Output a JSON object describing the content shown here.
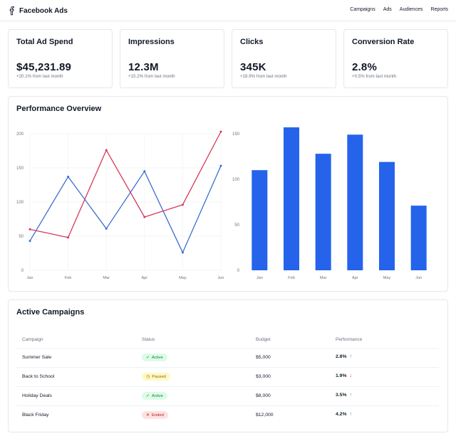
{
  "header": {
    "brand": "Facebook Ads",
    "nav": [
      "Campaigns",
      "Ads",
      "Audiences",
      "Reports"
    ]
  },
  "stats": [
    {
      "title": "Total Ad Spend",
      "value": "$45,231.89",
      "delta": "+20.1% from last month"
    },
    {
      "title": "Impressions",
      "value": "12.3M",
      "delta": "+15.2% from last month"
    },
    {
      "title": "Clicks",
      "value": "345K",
      "delta": "+18.9% from last month"
    },
    {
      "title": "Conversion Rate",
      "value": "2.8%",
      "delta": "+0.5% from last month"
    }
  ],
  "performance": {
    "title": "Performance Overview"
  },
  "chart_data": [
    {
      "type": "line",
      "x": [
        "Jan",
        "Feb",
        "Mar",
        "Apr",
        "May",
        "Jun"
      ],
      "ylim": [
        0,
        200
      ],
      "yticks": [
        0,
        50,
        100,
        150,
        200
      ],
      "grid": true,
      "series": [
        {
          "values": [
            43,
            137,
            61,
            145,
            26,
            153
          ],
          "color": "#3b6fd0"
        },
        {
          "values": [
            60,
            48,
            176,
            78,
            96,
            203
          ],
          "color": "#d63a5a"
        }
      ]
    },
    {
      "type": "bar",
      "categories": [
        "Jan",
        "Feb",
        "Mar",
        "Apr",
        "May",
        "Jun"
      ],
      "values": [
        110,
        157,
        128,
        149,
        119,
        71
      ],
      "ylim": [
        0,
        150
      ],
      "yticks": [
        0,
        50,
        100,
        150
      ],
      "color": "#2563eb"
    }
  ],
  "campaigns": {
    "title": "Active Campaigns",
    "headers": [
      "Campaign",
      "Status",
      "Budget",
      "Performance"
    ],
    "rows": [
      {
        "name": "Summer Sale",
        "status": "Active",
        "status_icon": "check-icon",
        "budget": "$5,000",
        "performance": "2.8%",
        "trend": "up"
      },
      {
        "name": "Back to School",
        "status": "Paused",
        "status_icon": "pause-clock-icon",
        "budget": "$3,000",
        "performance": "1.9%",
        "trend": "down"
      },
      {
        "name": "Holiday Deals",
        "status": "Active",
        "status_icon": "check-icon",
        "budget": "$8,000",
        "performance": "3.5%",
        "trend": "up"
      },
      {
        "name": "Black Friday",
        "status": "Ended",
        "status_icon": "x-icon",
        "budget": "$12,000",
        "performance": "4.2%",
        "trend": "up"
      }
    ]
  },
  "colors": {
    "accent": "#2563eb",
    "line_blue": "#3b6fd0",
    "line_red": "#d63a5a",
    "active_bg": "#dcfce7",
    "paused_bg": "#fef9c3",
    "ended_bg": "#fee2e2"
  }
}
